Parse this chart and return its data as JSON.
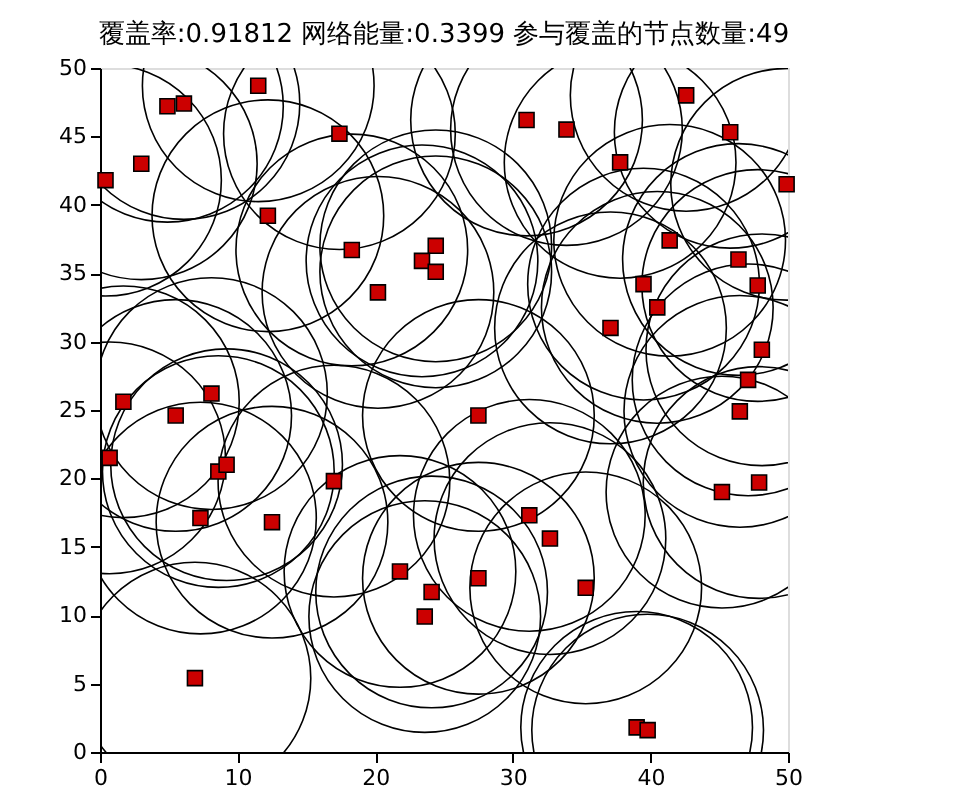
{
  "chart_data": {
    "type": "bubble",
    "title": "覆盖率:0.91812  网络能量:0.3399  参与覆盖的节点数量:49",
    "x": [
      0.4,
      3.0,
      4.9,
      6.1,
      11.5,
      17.4,
      12.2,
      18.3,
      24.4,
      23.4,
      24.4,
      20.2,
      31.0,
      33.9,
      42.6,
      45.8,
      37.8,
      49.9,
      41.4,
      46.4,
      47.8,
      39.5,
      40.5,
      37.1,
      48.1,
      47.1,
      46.5,
      45.2,
      47.9,
      27.5,
      31.2,
      32.7,
      35.3,
      27.5,
      24.1,
      21.8,
      23.6,
      39.0,
      39.8,
      1.7,
      0.7,
      5.5,
      8.1,
      8.6,
      9.2,
      17.0,
      7.3,
      12.5,
      6.9
    ],
    "series": [
      {
        "color": "#cc0000",
        "marker": "square",
        "values": [
          41.8,
          43.0,
          47.2,
          47.4,
          48.7,
          45.2,
          39.2,
          36.7,
          37.0,
          35.9,
          35.1,
          33.6,
          46.2,
          45.5,
          48.0,
          45.3,
          43.1,
          41.5,
          37.4,
          36.0,
          34.1,
          34.2,
          32.5,
          31.0,
          29.4,
          27.2,
          24.9,
          19.0,
          19.7,
          24.6,
          17.3,
          15.6,
          12.0,
          12.7,
          11.7,
          13.2,
          9.9,
          1.8,
          1.6,
          25.6,
          21.5,
          24.6,
          26.2,
          20.5,
          21.0,
          19.8,
          17.1,
          16.8,
          5.4
        ],
        "sizes": [
          1,
          1,
          1,
          1,
          1,
          1,
          1,
          1,
          1,
          1,
          1,
          1,
          1,
          1,
          1,
          1,
          1,
          1,
          1,
          1,
          1,
          1,
          1,
          1,
          1,
          1,
          1,
          1,
          1,
          1,
          1,
          1,
          1,
          1,
          1,
          1,
          1,
          1,
          1,
          1,
          1,
          1,
          1,
          1,
          1,
          1,
          1,
          1,
          1
        ]
      }
    ],
    "xlim": [
      0,
      50
    ],
    "ylim": [
      0,
      50
    ],
    "xticks": [
      0,
      10,
      20,
      30,
      40,
      50
    ],
    "yticks": [
      0,
      5,
      10,
      15,
      20,
      25,
      30,
      35,
      40,
      45,
      50
    ],
    "grid": false,
    "legend": false
  }
}
